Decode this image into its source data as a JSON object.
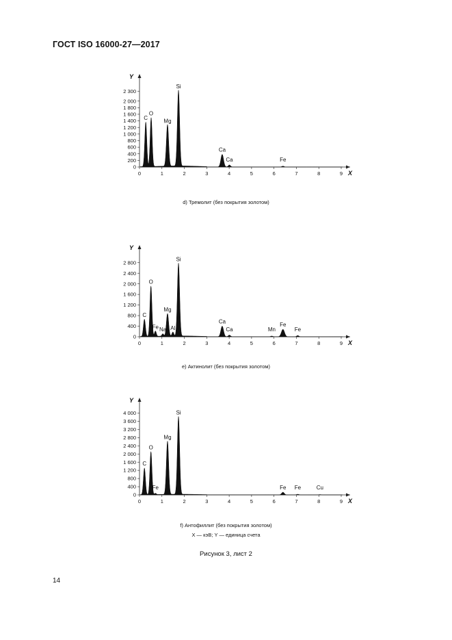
{
  "header": {
    "title": "ГОСТ ISO 16000-27—2017"
  },
  "page_number": "14",
  "figure_title": "Рисунок 3, лист 2",
  "legend_note": "X — кэВ; Y — единица счета",
  "chart_data": [
    {
      "type": "line",
      "caption": "d) Тремолит (без покрытия золотом)",
      "ylabel": "Y",
      "xlabel": "X",
      "xlim": [
        0,
        9.3
      ],
      "ylim": [
        0,
        2450
      ],
      "xticks": [
        "0",
        "1",
        "2",
        "3",
        "4",
        "5",
        "6",
        "7",
        "8",
        "9"
      ],
      "yticks": [
        {
          "v": 0,
          "l": "0"
        },
        {
          "v": 200,
          "l": "200"
        },
        {
          "v": 400,
          "l": "400"
        },
        {
          "v": 600,
          "l": "600"
        },
        {
          "v": 800,
          "l": "800"
        },
        {
          "v": 1000,
          "l": "1 000"
        },
        {
          "v": 1200,
          "l": "1 200"
        },
        {
          "v": 1400,
          "l": "1 400"
        },
        {
          "v": 1600,
          "l": "1 600"
        },
        {
          "v": 1800,
          "l": "1 800"
        },
        {
          "v": 2000,
          "l": "2 000"
        },
        {
          "v": 2300,
          "l": "2 300"
        }
      ],
      "peaks": [
        {
          "label": "C",
          "x": 0.28,
          "y": 1350,
          "w": 0.045,
          "labelled": true
        },
        {
          "label": "O",
          "x": 0.52,
          "y": 1480,
          "w": 0.045,
          "labelled": true
        },
        {
          "label": "Mg",
          "x": 1.25,
          "y": 1260,
          "w": 0.05,
          "labelled": true
        },
        {
          "label": "Si",
          "x": 1.74,
          "y": 2300,
          "w": 0.05,
          "labelled": true
        },
        {
          "label": "Ca",
          "x": 3.69,
          "y": 380,
          "w": 0.06,
          "labelled": true
        },
        {
          "label": "Ca",
          "x": 4.01,
          "y": 60,
          "w": 0.05,
          "labelled": true
        },
        {
          "label": "Fe",
          "x": 6.4,
          "y": 25,
          "w": 0.05,
          "labelled": true
        }
      ]
    },
    {
      "type": "line",
      "caption": "e) Актинолит (без покрытия золотом)",
      "ylabel": "Y",
      "xlabel": "X",
      "xlim": [
        0,
        9.3
      ],
      "ylim": [
        0,
        3000
      ],
      "xticks": [
        "0",
        "1",
        "2",
        "3",
        "4",
        "5",
        "6",
        "7",
        "8",
        "9"
      ],
      "yticks": [
        {
          "v": 0,
          "l": "0"
        },
        {
          "v": 400,
          "l": "400"
        },
        {
          "v": 800,
          "l": "800"
        },
        {
          "v": 1200,
          "l": "1 200"
        },
        {
          "v": 1600,
          "l": "1 600"
        },
        {
          "v": 2000,
          "l": "2 000"
        },
        {
          "v": 2400,
          "l": "2 400"
        },
        {
          "v": 2800,
          "l": "2 800"
        }
      ],
      "peaks": [
        {
          "label": "C",
          "x": 0.22,
          "y": 650,
          "w": 0.045,
          "labelled": true
        },
        {
          "label": "O",
          "x": 0.51,
          "y": 1900,
          "w": 0.045,
          "labelled": true
        },
        {
          "label": "Fe",
          "x": 0.71,
          "y": 200,
          "w": 0.04,
          "labelled": true
        },
        {
          "label": "Na",
          "x": 1.04,
          "y": 90,
          "w": 0.04,
          "labelled": true
        },
        {
          "label": "Mg",
          "x": 1.25,
          "y": 850,
          "w": 0.05,
          "labelled": true
        },
        {
          "label": "Al",
          "x": 1.49,
          "y": 150,
          "w": 0.04,
          "labelled": true
        },
        {
          "label": "Si",
          "x": 1.74,
          "y": 2750,
          "w": 0.05,
          "labelled": true
        },
        {
          "label": "Ca",
          "x": 3.69,
          "y": 400,
          "w": 0.06,
          "labelled": true
        },
        {
          "label": "Ca",
          "x": 4.01,
          "y": 60,
          "w": 0.05,
          "labelled": true
        },
        {
          "label": "Mn",
          "x": 5.9,
          "y": 25,
          "w": 0.05,
          "labelled": true
        },
        {
          "label": "Fe",
          "x": 6.4,
          "y": 280,
          "w": 0.07,
          "labelled": true
        },
        {
          "label": "Fe",
          "x": 7.06,
          "y": 45,
          "w": 0.05,
          "labelled": true
        }
      ]
    },
    {
      "type": "line",
      "caption": "f) Антофиллит (без покрытия золотом)",
      "ylabel": "Y",
      "xlabel": "X",
      "xlim": [
        0,
        9.3
      ],
      "ylim": [
        0,
        4150
      ],
      "xticks": [
        "0",
        "1",
        "2",
        "3",
        "4",
        "5",
        "6",
        "7",
        "8",
        "9"
      ],
      "yticks": [
        {
          "v": 0,
          "l": "0"
        },
        {
          "v": 400,
          "l": "400"
        },
        {
          "v": 800,
          "l": "800"
        },
        {
          "v": 1200,
          "l": "1 200"
        },
        {
          "v": 1600,
          "l": "1 600"
        },
        {
          "v": 2000,
          "l": "2 000"
        },
        {
          "v": 2400,
          "l": "2 400"
        },
        {
          "v": 2800,
          "l": "2 800"
        },
        {
          "v": 3200,
          "l": "3 200"
        },
        {
          "v": 3600,
          "l": "3 600"
        },
        {
          "v": 4000,
          "l": "4 000"
        }
      ],
      "peaks": [
        {
          "label": "C",
          "x": 0.22,
          "y": 1300,
          "w": 0.045,
          "labelled": true
        },
        {
          "label": "O",
          "x": 0.51,
          "y": 2100,
          "w": 0.045,
          "labelled": true
        },
        {
          "label": "Fe",
          "x": 0.71,
          "y": 60,
          "w": 0.04,
          "labelled": true
        },
        {
          "label": "Mg",
          "x": 1.25,
          "y": 2600,
          "w": 0.05,
          "labelled": true
        },
        {
          "label": "Si",
          "x": 1.74,
          "y": 3800,
          "w": 0.05,
          "labelled": true
        },
        {
          "label": "Fe",
          "x": 6.4,
          "y": 130,
          "w": 0.06,
          "labelled": true
        },
        {
          "label": "Fe",
          "x": 7.06,
          "y": 30,
          "w": 0.05,
          "labelled": true
        },
        {
          "label": "Cu",
          "x": 8.05,
          "y": 15,
          "w": 0.05,
          "labelled": true
        }
      ]
    }
  ]
}
